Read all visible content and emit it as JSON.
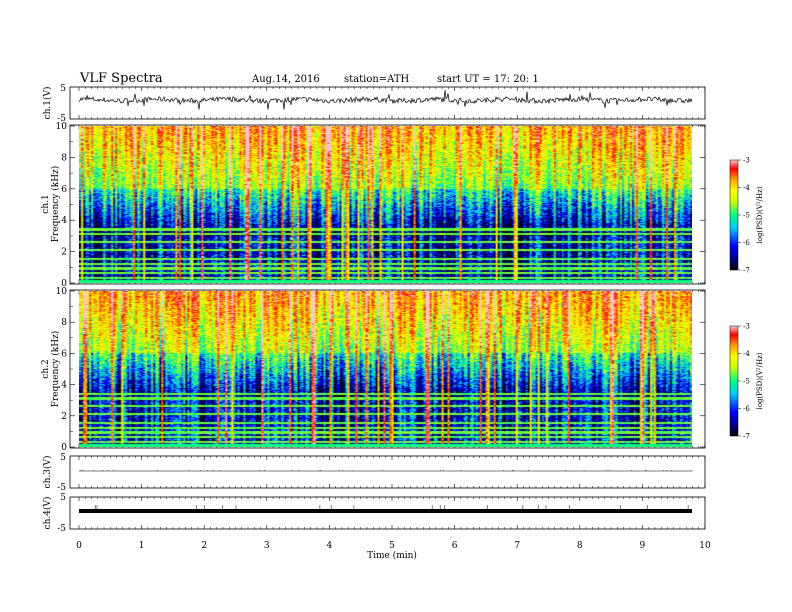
{
  "header": {
    "title": "VLF  Spectra",
    "date": "Aug.14, 2016",
    "station": "station=ATH",
    "start": "start  UT  =    17: 20: 1"
  },
  "colors": {
    "colormap": [
      "#000000",
      "#00008b",
      "#0000ff",
      "#00c8ff",
      "#00ff80",
      "#c8ff00",
      "#ffff00",
      "#ffa000",
      "#ff0000",
      "#ffc8c8"
    ]
  },
  "chart_data": [
    {
      "type": "line",
      "panel": "ch1-waveform",
      "ylabel": "ch.1(V)",
      "ylim": [
        -5,
        5
      ],
      "yticks": [
        "5",
        "-5"
      ],
      "description_values": "noisy waveform centred near 0 V with spikes to about +/-2 V"
    },
    {
      "type": "heatmap",
      "panel": "ch1-spectrogram",
      "ylabel": [
        "ch.1",
        "Frequency  (kHz)"
      ],
      "ylim": [
        0,
        10
      ],
      "yticks": [
        "10",
        "8",
        "6",
        "4",
        "2",
        "0"
      ],
      "colorbar": {
        "label": "log(PSD)(V²/Hz)",
        "range": [
          -7,
          -3
        ],
        "ticks": [
          "-3",
          "-4",
          "-5",
          "-6",
          "-7"
        ]
      }
    },
    {
      "type": "heatmap",
      "panel": "ch2-spectrogram",
      "ylabel": [
        "ch.2",
        "Frequency  (kHz)"
      ],
      "ylim": [
        0,
        10
      ],
      "yticks": [
        "10",
        "8",
        "6",
        "4",
        "2",
        "0"
      ],
      "colorbar": {
        "label": "log(PSD)(V²/Hz)",
        "range": [
          -7,
          -3
        ],
        "ticks": [
          "-3",
          "-4",
          "-5",
          "-6",
          "-7"
        ]
      }
    },
    {
      "type": "line",
      "panel": "ch3-waveform",
      "ylabel": "ch.3(V)",
      "ylim": [
        -5,
        5
      ],
      "yticks": [
        "5",
        "-5"
      ]
    },
    {
      "type": "line",
      "panel": "ch4-waveform",
      "ylabel": "ch.4(V)",
      "ylim": [
        -5,
        5
      ],
      "yticks": [
        "5",
        "-5"
      ]
    },
    {
      "type": "axis",
      "xlabel": "Time  (min)",
      "xlim": [
        0,
        10
      ],
      "xticks": [
        "0",
        "1",
        "2",
        "3",
        "4",
        "5",
        "6",
        "7",
        "8",
        "9",
        "10"
      ],
      "data_end_min": 9.8
    }
  ]
}
